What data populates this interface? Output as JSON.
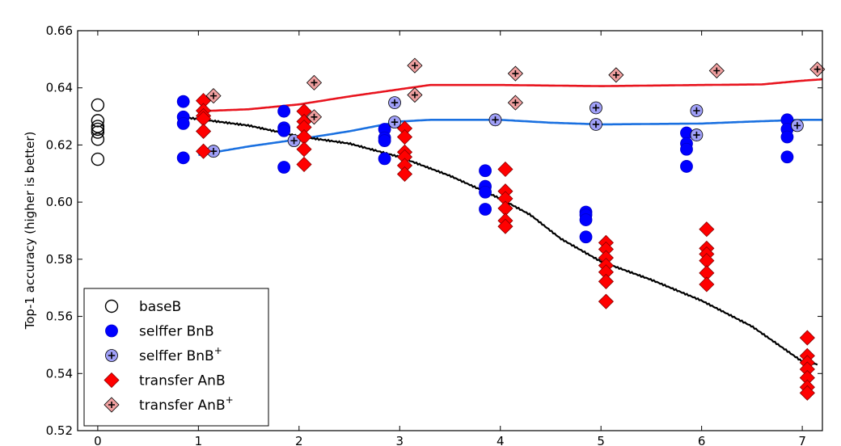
{
  "chart_data": {
    "type": "scatter",
    "title": "",
    "xlabel": "",
    "ylabel": "Top-1 accuracy (higher is better)",
    "xlim": [
      -0.2,
      7.2
    ],
    "ylim": [
      0.52,
      0.66
    ],
    "xticks": [
      0,
      1,
      2,
      3,
      4,
      5,
      6,
      7
    ],
    "yticks": [
      0.52,
      0.54,
      0.56,
      0.58,
      0.6,
      0.62,
      0.64,
      0.66
    ],
    "ytick_labels": [
      "0.52",
      "0.54",
      "0.56",
      "0.58",
      "0.60",
      "0.62",
      "0.64",
      "0.66"
    ],
    "grid": false,
    "legend_position": "bottom-left",
    "series": [
      {
        "name": "baseB",
        "marker": "open-circle",
        "color": "#000000",
        "fill": "none",
        "points": [
          [
            0,
            0.634
          ],
          [
            0,
            0.6285
          ],
          [
            0,
            0.6265
          ],
          [
            0,
            0.6255
          ],
          [
            0,
            0.6245
          ],
          [
            0,
            0.622
          ],
          [
            0,
            0.615
          ]
        ]
      },
      {
        "name": "selffer BnB",
        "marker": "circle",
        "color": "#0000ff",
        "fill": "#0000ff",
        "points": [
          [
            0.85,
            0.6352
          ],
          [
            0.85,
            0.6298
          ],
          [
            0.85,
            0.6275
          ],
          [
            0.85,
            0.6155
          ],
          [
            1.85,
            0.6318
          ],
          [
            1.85,
            0.626
          ],
          [
            1.85,
            0.625
          ],
          [
            1.85,
            0.6122
          ],
          [
            2.85,
            0.6255
          ],
          [
            2.85,
            0.6225
          ],
          [
            2.85,
            0.6215
          ],
          [
            2.85,
            0.6152
          ],
          [
            3.85,
            0.611
          ],
          [
            3.85,
            0.6055
          ],
          [
            3.85,
            0.6035
          ],
          [
            3.85,
            0.5975
          ],
          [
            4.85,
            0.5965
          ],
          [
            4.85,
            0.5955
          ],
          [
            4.85,
            0.5938
          ],
          [
            4.85,
            0.5878
          ],
          [
            5.85,
            0.6242
          ],
          [
            5.85,
            0.6205
          ],
          [
            5.85,
            0.6185
          ],
          [
            5.85,
            0.6125
          ],
          [
            6.85,
            0.6288
          ],
          [
            6.85,
            0.6255
          ],
          [
            6.85,
            0.6228
          ],
          [
            6.85,
            0.6158
          ]
        ]
      },
      {
        "name": "selffer BnB",
        "legend_superscript": "+",
        "marker": "circle-plus",
        "color": "#000000",
        "fill": "#a0a0f8",
        "points": [
          [
            1.15,
            0.6178
          ],
          [
            1.95,
            0.6215
          ],
          [
            2.95,
            0.6348
          ],
          [
            2.95,
            0.628
          ],
          [
            3.95,
            0.6288
          ],
          [
            4.95,
            0.633
          ],
          [
            4.95,
            0.6272
          ],
          [
            5.95,
            0.632
          ],
          [
            5.95,
            0.6235
          ],
          [
            6.95,
            0.6268
          ]
        ]
      },
      {
        "name": "transfer AnB",
        "marker": "diamond",
        "color": "#ff0000",
        "fill": "#ff0000",
        "points": [
          [
            1.05,
            0.6355
          ],
          [
            1.05,
            0.632
          ],
          [
            1.05,
            0.6302
          ],
          [
            1.05,
            0.6292
          ],
          [
            1.05,
            0.6248
          ],
          [
            1.05,
            0.6178
          ],
          [
            2.05,
            0.6318
          ],
          [
            2.05,
            0.6282
          ],
          [
            2.05,
            0.6262
          ],
          [
            2.05,
            0.6228
          ],
          [
            2.05,
            0.6185
          ],
          [
            2.05,
            0.6132
          ],
          [
            3.05,
            0.6258
          ],
          [
            3.05,
            0.6228
          ],
          [
            3.05,
            0.6175
          ],
          [
            3.05,
            0.6158
          ],
          [
            3.05,
            0.6128
          ],
          [
            3.05,
            0.6098
          ],
          [
            4.05,
            0.6115
          ],
          [
            4.05,
            0.6038
          ],
          [
            4.05,
            0.6012
          ],
          [
            4.05,
            0.5978
          ],
          [
            4.05,
            0.5935
          ],
          [
            4.05,
            0.5915
          ],
          [
            5.05,
            0.5858
          ],
          [
            5.05,
            0.5835
          ],
          [
            5.05,
            0.5805
          ],
          [
            5.05,
            0.5778
          ],
          [
            5.05,
            0.5755
          ],
          [
            5.05,
            0.5722
          ],
          [
            5.05,
            0.5652
          ],
          [
            6.05,
            0.5905
          ],
          [
            6.05,
            0.5838
          ],
          [
            6.05,
            0.5818
          ],
          [
            6.05,
            0.5795
          ],
          [
            6.05,
            0.5752
          ],
          [
            6.05,
            0.5712
          ],
          [
            7.05,
            0.5525
          ],
          [
            7.05,
            0.5462
          ],
          [
            7.05,
            0.5438
          ],
          [
            7.05,
            0.5415
          ],
          [
            7.05,
            0.5385
          ],
          [
            7.05,
            0.5352
          ],
          [
            7.05,
            0.5332
          ]
        ]
      },
      {
        "name": "transfer AnB",
        "legend_superscript": "+",
        "marker": "diamond-plus",
        "color": "#000000",
        "fill": "#f0a0a0",
        "points": [
          [
            1.15,
            0.6372
          ],
          [
            2.15,
            0.6418
          ],
          [
            2.15,
            0.6298
          ],
          [
            3.15,
            0.6478
          ],
          [
            3.15,
            0.6375
          ],
          [
            4.15,
            0.645
          ],
          [
            4.15,
            0.6348
          ],
          [
            5.15,
            0.6445
          ],
          [
            6.15,
            0.646
          ],
          [
            7.15,
            0.6465
          ]
        ]
      }
    ],
    "lines": [
      {
        "for": "transfer AnB+",
        "color": "#e8141e",
        "points": [
          [
            1,
            0.6318
          ],
          [
            1.5,
            0.6325
          ],
          [
            2,
            0.6342
          ],
          [
            2.5,
            0.637
          ],
          [
            3,
            0.6395
          ],
          [
            3.3,
            0.641
          ],
          [
            4,
            0.641
          ],
          [
            5,
            0.6406
          ],
          [
            6,
            0.641
          ],
          [
            6.6,
            0.6412
          ],
          [
            7,
            0.6425
          ],
          [
            7.2,
            0.643
          ]
        ]
      },
      {
        "for": "selffer BnB+",
        "color": "#1a70e0",
        "points": [
          [
            1,
            0.6165
          ],
          [
            1.5,
            0.6195
          ],
          [
            2,
            0.622
          ],
          [
            2.5,
            0.6248
          ],
          [
            3,
            0.6282
          ],
          [
            3.3,
            0.6288
          ],
          [
            4,
            0.6288
          ],
          [
            4.5,
            0.6278
          ],
          [
            5,
            0.6272
          ],
          [
            6,
            0.6275
          ],
          [
            6.5,
            0.6282
          ],
          [
            7,
            0.6288
          ],
          [
            7.2,
            0.6288
          ]
        ]
      },
      {
        "for": "transfer AnB",
        "color": "#000000",
        "points": [
          [
            0.9,
            0.6295
          ],
          [
            1.5,
            0.6268
          ],
          [
            2,
            0.623
          ],
          [
            2.5,
            0.6205
          ],
          [
            3,
            0.6158
          ],
          [
            3.5,
            0.6092
          ],
          [
            4,
            0.6012
          ],
          [
            4.3,
            0.5955
          ],
          [
            4.6,
            0.5872
          ],
          [
            5,
            0.5792
          ],
          [
            5.5,
            0.5728
          ],
          [
            6,
            0.5655
          ],
          [
            6.5,
            0.5565
          ],
          [
            7,
            0.5442
          ],
          [
            7.15,
            0.5432
          ]
        ]
      }
    ]
  }
}
